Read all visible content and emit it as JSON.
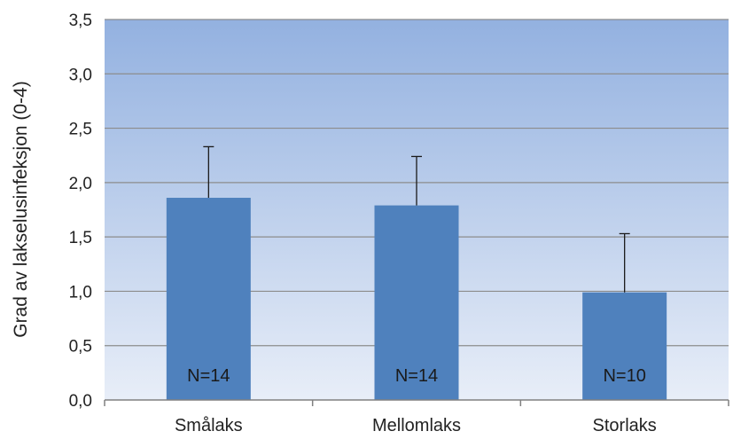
{
  "chart_data": {
    "type": "bar",
    "title": "",
    "xlabel": "",
    "ylabel": "Grad av lakselusinfeksjon (0-4)",
    "categories": [
      "Smålaks",
      "Mellomlaks",
      "Storlaks"
    ],
    "values": [
      1.86,
      1.79,
      0.99
    ],
    "error_upper": [
      2.33,
      2.24,
      1.53
    ],
    "n_labels": [
      "N=14",
      "N=14",
      "N=10"
    ],
    "ylim": [
      0,
      3.5
    ],
    "yticks": [
      0.0,
      0.5,
      1.0,
      1.5,
      2.0,
      2.5,
      3.0,
      3.5
    ],
    "ytick_labels": [
      "0,0",
      "0,5",
      "1,0",
      "1,5",
      "2,0",
      "2,5",
      "3,0",
      "3,5"
    ],
    "grid": true,
    "colors": {
      "bar": "#4f81bd",
      "bg_top": "#93b1e0",
      "bg_bottom": "#e8eef8",
      "grid": "#8c8c8c",
      "axis": "#808080",
      "error": "#1a1a1a"
    }
  }
}
